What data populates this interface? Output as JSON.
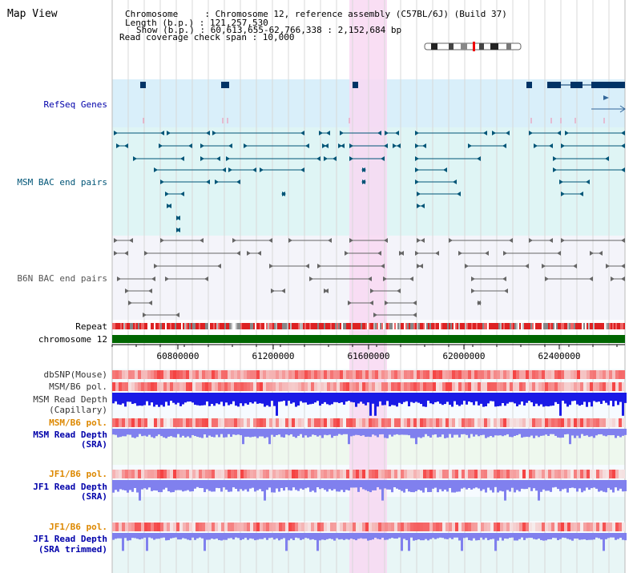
{
  "view_title": "Map View",
  "info": {
    "chromosome_line": "Chromosome     : Chromosome 12, reference assembly (C57BL/6J) (Build 37)",
    "length_line": "Length (b.p.) : 121,257,530",
    "show_line": "Show (b.p.) : 60,613,655-62,766,338 : 2,152,684 bp",
    "span_line": "Read coverage check span : 10,000"
  },
  "tracks": {
    "refseq": "RefSeq Genes",
    "msm_bac": "MSM BAC end pairs",
    "b6n_bac": "B6N BAC end pairs",
    "repeat": "Repeat",
    "chromosome": "chromosome 12",
    "dbsnp": "dbSNP(Mouse)",
    "msm_b6_pol": "MSM/B6 pol.",
    "msm_depth_cap_1": "MSM Read Depth",
    "msm_depth_cap_2": "(Capillary)",
    "msm_b6_pol_2": "MSM/B6 pol.",
    "msm_depth_sra_1": "MSM Read Depth",
    "msm_depth_sra_2": "(SRA)",
    "jf1_b6_pol": "JF1/B6 pol.",
    "jf1_depth_sra_1": "JF1 Read Depth",
    "jf1_depth_sra_2": "(SRA)",
    "jf1_b6_pol_2": "JF1/B6 pol.",
    "jf1_depth_trim_1": "JF1 Read Depth",
    "jf1_depth_trim_2": "(SRA trimmed)"
  },
  "axis": {
    "ticks": [
      "60800000",
      "61200000",
      "61600000",
      "62000000",
      "62400000"
    ]
  },
  "colors": {
    "refseq_bg": "#d9effa",
    "msm_bg": "#dff5f5",
    "b6n_bg": "#f4f4fa",
    "highlight": "#f8d8f2",
    "gene": "#003366",
    "msm_feature": "#005577",
    "b6n_feature": "#666666",
    "chromosome_bar": "#006600",
    "depth_dark": "#1a1ae6",
    "depth_light": "#8080ee",
    "pol_red": "#ee4444",
    "label_blue": "#0000aa",
    "label_orange": "#dd8800"
  }
}
